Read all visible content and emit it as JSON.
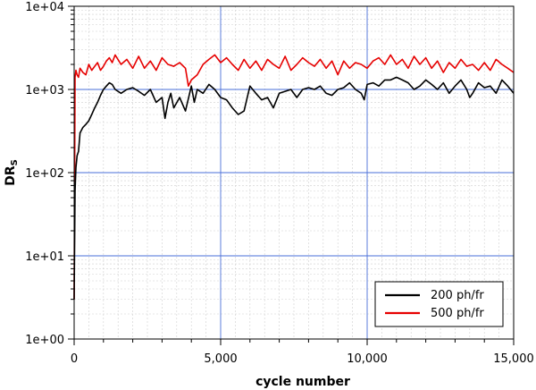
{
  "chart_data": {
    "type": "line",
    "title": "",
    "xlabel": "cycle number",
    "ylabel_main": "DR",
    "ylabel_sub": "S",
    "xlim": [
      0,
      15000
    ],
    "ylim": [
      1,
      10000
    ],
    "yscale": "log",
    "x_ticks": [
      0,
      5000,
      10000,
      15000
    ],
    "x_tick_labels": [
      "0",
      "5,000",
      "10,000",
      "15,000"
    ],
    "y_ticks": [
      1,
      10,
      100,
      1000,
      10000
    ],
    "y_tick_labels": [
      "1e+00",
      "1e+01",
      "1e+02",
      "1e+03",
      "1e+04"
    ],
    "grid": true,
    "legend_position": "bottom-right",
    "series": [
      {
        "name": "200 ph/fr",
        "color": "#000000",
        "x": [
          0,
          30,
          60,
          100,
          150,
          200,
          300,
          400,
          500,
          600,
          700,
          800,
          900,
          1000,
          1100,
          1200,
          1300,
          1400,
          1600,
          1800,
          2000,
          2200,
          2400,
          2600,
          2800,
          3000,
          3100,
          3200,
          3300,
          3400,
          3600,
          3800,
          4000,
          4100,
          4200,
          4400,
          4600,
          4800,
          5000,
          5200,
          5400,
          5600,
          5800,
          6000,
          6200,
          6400,
          6600,
          6800,
          7000,
          7200,
          7400,
          7600,
          7800,
          8000,
          8200,
          8400,
          8600,
          8800,
          9000,
          9200,
          9400,
          9600,
          9800,
          9900,
          10000,
          10200,
          10400,
          10600,
          10800,
          11000,
          11200,
          11400,
          11600,
          11800,
          12000,
          12200,
          12400,
          12600,
          12800,
          13000,
          13200,
          13400,
          13500,
          13600,
          13800,
          14000,
          14200,
          14400,
          14600,
          14800,
          15000
        ],
        "values": [
          3,
          60,
          115,
          160,
          180,
          300,
          350,
          380,
          420,
          500,
          600,
          700,
          850,
          1000,
          1100,
          1200,
          1150,
          1000,
          900,
          1000,
          1050,
          950,
          850,
          1000,
          700,
          800,
          450,
          700,
          900,
          600,
          800,
          550,
          1100,
          700,
          1000,
          900,
          1150,
          1000,
          800,
          750,
          600,
          500,
          550,
          1100,
          900,
          750,
          800,
          600,
          900,
          950,
          1000,
          800,
          1000,
          1050,
          1000,
          1100,
          900,
          850,
          1000,
          1050,
          1200,
          1000,
          900,
          750,
          1150,
          1200,
          1100,
          1300,
          1300,
          1400,
          1300,
          1200,
          1000,
          1100,
          1300,
          1150,
          1000,
          1200,
          900,
          1100,
          1300,
          1000,
          800,
          900,
          1200,
          1050,
          1100,
          900,
          1300,
          1100,
          900
        ]
      },
      {
        "name": "500 ph/fr",
        "color": "#e60000",
        "x": [
          0,
          30,
          60,
          100,
          150,
          200,
          300,
          400,
          500,
          600,
          700,
          800,
          900,
          1000,
          1100,
          1200,
          1300,
          1400,
          1600,
          1800,
          2000,
          2200,
          2400,
          2600,
          2800,
          3000,
          3200,
          3400,
          3600,
          3800,
          3900,
          4000,
          4200,
          4400,
          4600,
          4800,
          5000,
          5200,
          5400,
          5600,
          5800,
          6000,
          6200,
          6400,
          6600,
          6800,
          7000,
          7200,
          7400,
          7600,
          7800,
          8000,
          8200,
          8400,
          8600,
          8800,
          9000,
          9200,
          9400,
          9600,
          9800,
          10000,
          10200,
          10400,
          10600,
          10800,
          11000,
          11200,
          11400,
          11600,
          11800,
          12000,
          12200,
          12400,
          12600,
          12800,
          13000,
          13200,
          13400,
          13600,
          13800,
          14000,
          14200,
          14400,
          14600,
          14800,
          15000
        ],
        "values": [
          3,
          1400,
          1700,
          1500,
          1400,
          1800,
          1600,
          1500,
          2000,
          1700,
          1900,
          2100,
          1700,
          1900,
          2200,
          2400,
          2100,
          2600,
          2000,
          2300,
          1800,
          2500,
          1800,
          2200,
          1700,
          2400,
          2000,
          1900,
          2100,
          1800,
          1100,
          1300,
          1500,
          2000,
          2300,
          2600,
          2100,
          2400,
          2000,
          1700,
          2300,
          1800,
          2200,
          1700,
          2300,
          2000,
          1800,
          2500,
          1700,
          2000,
          2400,
          2100,
          1900,
          2300,
          1800,
          2200,
          1500,
          2200,
          1800,
          2100,
          2000,
          1800,
          2200,
          2400,
          2000,
          2600,
          2000,
          2300,
          1800,
          2500,
          2000,
          2400,
          1800,
          2200,
          1600,
          2100,
          1800,
          2300,
          1900,
          2000,
          1700,
          2100,
          1700,
          2300,
          2000,
          1800,
          1600
        ]
      }
    ]
  }
}
